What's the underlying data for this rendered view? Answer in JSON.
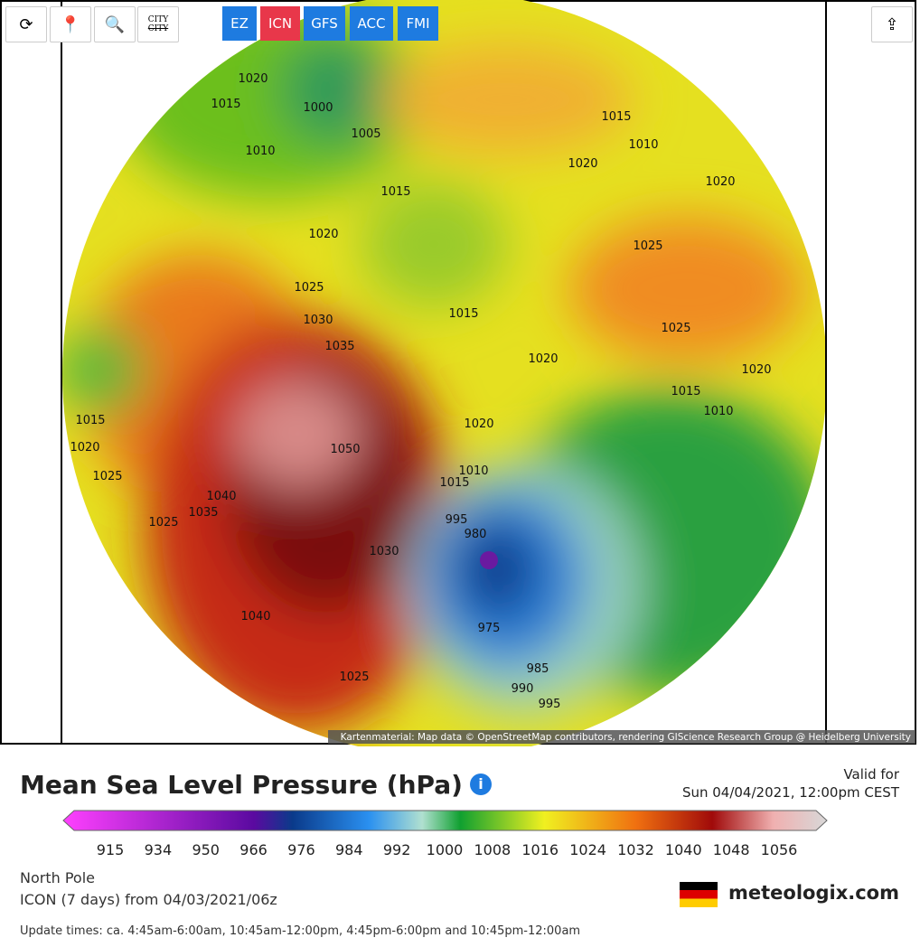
{
  "toolbar": {
    "buttons": [
      "CITY",
      "CITY"
    ],
    "models": [
      "EZ",
      "ICN",
      "GFS",
      "ACC",
      "FMI"
    ]
  },
  "map": {
    "attribution": "Kartenmaterial: Map data © OpenStreetMap contributors, rendering GIScience Research Group @ Heidelberg University",
    "isobar_labels": [
      "1020",
      "1015",
      "1000",
      "1005",
      "1010",
      "1015",
      "1020",
      "1015",
      "1010",
      "1020",
      "1020",
      "1025",
      "1025",
      "1015",
      "1030",
      "1035",
      "1025",
      "1020",
      "1020",
      "1015",
      "1010",
      "1020",
      "1050",
      "1010",
      "1015",
      "995",
      "980",
      "1040",
      "1035",
      "1025",
      "1030",
      "975",
      "985",
      "990",
      "995",
      "1025",
      "1015",
      "1020",
      "1025",
      "1040"
    ]
  },
  "legend": {
    "title": "Mean Sea Level Pressure (hPa)",
    "valid_label": "Valid for",
    "valid_time": "Sun 04/04/2021, 12:00pm CEST",
    "scale_labels": [
      "915",
      "934",
      "950",
      "966",
      "976",
      "984",
      "992",
      "1000",
      "1008",
      "1016",
      "1024",
      "1032",
      "1040",
      "1048",
      "1056"
    ]
  },
  "info": {
    "region": "North Pole",
    "model_run": "ICON (7 days) from 04/03/2021/06z",
    "brand": "meteologix.com",
    "update_times": "Update times: ca. 4:45am-6:00am, 10:45am-12:00pm, 4:45pm-6:00pm and 10:45pm-12:00am"
  }
}
